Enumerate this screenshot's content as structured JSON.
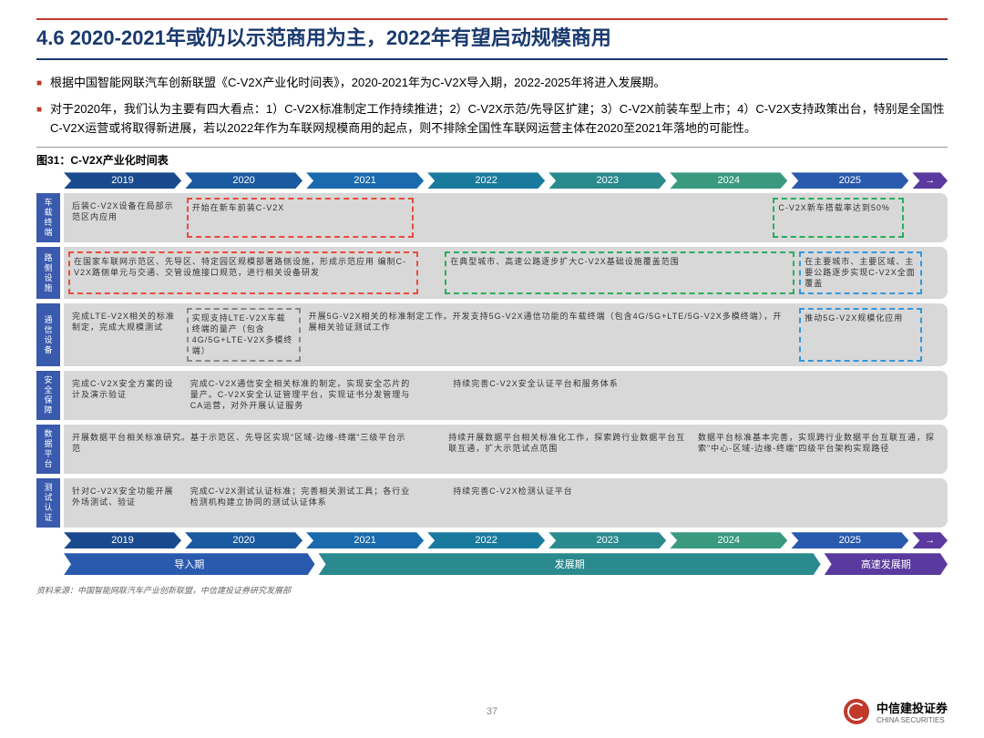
{
  "title": "4.6 2020-2021年或仍以示范商用为主，2022年有望启动规模商用",
  "bullets": [
    "根据中国智能网联汽车创新联盟《C-V2X产业化时间表》，2020-2021年为C-V2X导入期，2022-2025年将进入发展期。",
    "对于2020年，我们认为主要有四大看点：1）C-V2X标准制定工作持续推进；2）C-V2X示范/先导区扩建；3）C-V2X前装车型上市；4）C-V2X支持政策出台，特别是全国性C-V2X运营或将取得新进展，若以2022年作为车联网规模商用的起点，则不排除全国性车联网运营主体在2020至2021年落地的可能性。"
  ],
  "chartTitle": "图31：C-V2X产业化时间表",
  "years": [
    "2019",
    "2020",
    "2021",
    "2022",
    "2023",
    "2024",
    "2025",
    "→"
  ],
  "tracks": [
    {
      "label": "车载终端",
      "cells": [
        {
          "text": "后装C-V2X设备在局部示范区内应用",
          "w": "13%",
          "cls": ""
        },
        {
          "text": "开始在新车前装C-V2X",
          "w": "26%",
          "cls": "dashed-red"
        },
        {
          "text": "",
          "w": "40%",
          "cls": ""
        },
        {
          "text": "C-V2X新车搭载率达到50%",
          "w": "15%",
          "cls": "dashed-green"
        }
      ]
    },
    {
      "label": "路侧设施",
      "cells": [
        {
          "text": "在国家车联网示范区、先导区、特定园区规模部署路侧设施，形成示范应用\n编制C-V2X路侧单元与交通、交管设施接口规范，进行相关设备研发",
          "w": "40%",
          "cls": "dashed-red"
        },
        {
          "text": "",
          "w": "2%",
          "cls": ""
        },
        {
          "text": "在典型城市、高速公路逐步扩大C-V2X基础设施覆盖范围",
          "w": "40%",
          "cls": "dashed-green"
        },
        {
          "text": "在主要城市、主要区域、主要公路逐步实现C-V2X全面覆盖",
          "w": "14%",
          "cls": "dashed-blue"
        }
      ]
    },
    {
      "label": "通信设备",
      "cells": [
        {
          "text": "完成LTE-V2X相关的标准制定，完成大规模测试",
          "w": "13%",
          "cls": ""
        },
        {
          "text": "实现支持LTE-V2X车载终端的量产（包含4G/5G+LTE-V2X多模终端）",
          "w": "13%",
          "cls": "dashed-gray"
        },
        {
          "text": "开展5G-V2X相关的标准制定工作。开发支持5G-V2X通信功能的车载终端（包含4G/5G+LTE/5G-V2X多模终端），开展相关验证测试工作",
          "w": "56%",
          "cls": ""
        },
        {
          "text": "推动5G-V2X规模化应用",
          "w": "14%",
          "cls": "dashed-blue"
        }
      ]
    },
    {
      "label": "安全保障",
      "cells": [
        {
          "text": "完成C-V2X安全方案的设计及演示验证",
          "w": "13%",
          "cls": ""
        },
        {
          "text": "完成C-V2X通信安全相关标准的制定。实现安全芯片的量产。C-V2X安全认证管理平台，实现证书分发管理与CA运营，对外开展认证服务",
          "w": "26%",
          "cls": ""
        },
        {
          "text": "",
          "w": "3%",
          "cls": ""
        },
        {
          "text": "持续完善C-V2X安全认证平台和服务体系",
          "w": "54%",
          "cls": ""
        }
      ]
    },
    {
      "label": "数据平台",
      "cells": [
        {
          "text": "开展数据平台相关标准研究。基于示范区、先导区实现\"区域-边缘-终端\"三级平台示范",
          "w": "40%",
          "cls": ""
        },
        {
          "text": "",
          "w": "2%",
          "cls": ""
        },
        {
          "text": "持续开展数据平台相关标准化工作，探索跨行业数据平台互联互通，扩大示范试点范围",
          "w": "28%",
          "cls": ""
        },
        {
          "text": "数据平台标准基本完善，实现跨行业数据平台互联互通，探索\"中心-区域-边缘-终端\"四级平台架构实现路径",
          "w": "28%",
          "cls": ""
        }
      ]
    },
    {
      "label": "测试认证",
      "cells": [
        {
          "text": "针对C-V2X安全功能开展外场测试、验证",
          "w": "13%",
          "cls": ""
        },
        {
          "text": "完成C-V2X测试认证标准；完善相关测试工具；各行业检测机构建立协同的测试认证体系",
          "w": "26%",
          "cls": ""
        },
        {
          "text": "",
          "w": "3%",
          "cls": ""
        },
        {
          "text": "持续完善C-V2X检测认证平台",
          "w": "54%",
          "cls": ""
        }
      ]
    }
  ],
  "phases": [
    {
      "label": "导入期",
      "w": "28.5%",
      "color": "#2a5aae"
    },
    {
      "label": "发展期",
      "w": "57%",
      "color": "#2a8a8e"
    },
    {
      "label": "高速发展期",
      "w": "14%",
      "color": "#5a3a9e"
    }
  ],
  "source": "资料来源：中国智能网联汽车产业创新联盟，中信建投证券研究发展部",
  "pageNum": "37",
  "logo": {
    "cn": "中信建投证券",
    "en": "CHINA SECURITIES"
  }
}
